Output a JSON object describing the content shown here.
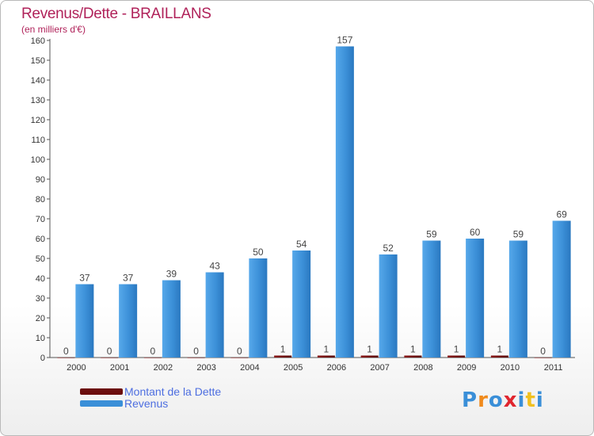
{
  "chart_data": {
    "type": "bar",
    "title": "Revenus/Dette - BRAILLANS",
    "subtitle": "(en milliers d'€)",
    "xlabel": "",
    "ylabel": "",
    "ylim": [
      0,
      160
    ],
    "y_tick_step": 10,
    "grid": false,
    "legend_position": "bottom-left",
    "categories": [
      "2000",
      "2001",
      "2002",
      "2003",
      "2004",
      "2005",
      "2006",
      "2007",
      "2008",
      "2009",
      "2010",
      "2011"
    ],
    "series": [
      {
        "name": "Montant de la Dette",
        "color": "#6b0d0d",
        "values": [
          0,
          0,
          0,
          0,
          0,
          1,
          1,
          1,
          1,
          1,
          1,
          0
        ]
      },
      {
        "name": "Revenus",
        "color": "#3a8fd8",
        "values": [
          37,
          37,
          39,
          43,
          50,
          54,
          157,
          52,
          59,
          60,
          59,
          69
        ]
      }
    ]
  },
  "logo": {
    "text": "Proxiti",
    "letter_colors": [
      "#3a8fd8",
      "#f08a1c",
      "#3a8fd8",
      "#e0262f",
      "#3a8fd8",
      "#f0c020",
      "#3a8fd8"
    ]
  }
}
